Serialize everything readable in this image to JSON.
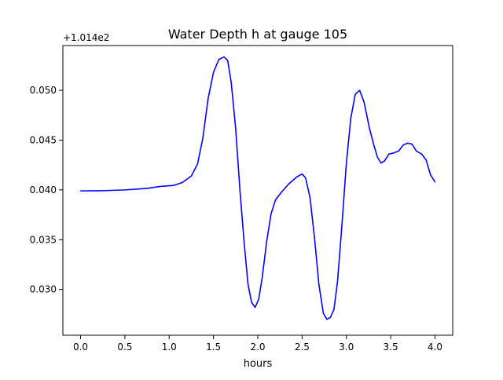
{
  "chart_data": {
    "type": "line",
    "title": "Water Depth h at gauge 105",
    "xlabel": "hours",
    "ylabel": "",
    "offset_label": "+1.014e2",
    "y_offset": 101.4,
    "xlim": [
      -0.2,
      4.2
    ],
    "ylim": [
      0.0254,
      0.0545
    ],
    "xticks": [
      0.0,
      0.5,
      1.0,
      1.5,
      2.0,
      2.5,
      3.0,
      3.5,
      4.0
    ],
    "xtick_labels": [
      "0.0",
      "0.5",
      "1.0",
      "1.5",
      "2.0",
      "2.5",
      "3.0",
      "3.5",
      "4.0"
    ],
    "yticks": [
      0.03,
      0.035,
      0.04,
      0.045,
      0.05
    ],
    "ytick_labels": [
      "0.030",
      "0.035",
      "0.040",
      "0.045",
      "0.050"
    ],
    "grid": false,
    "series": [
      {
        "color": "#0000ff",
        "points": [
          [
            0.0,
            0.0399
          ],
          [
            0.25,
            0.03992
          ],
          [
            0.5,
            0.04
          ],
          [
            0.75,
            0.04015
          ],
          [
            0.9,
            0.04035
          ],
          [
            1.05,
            0.04045
          ],
          [
            1.15,
            0.04075
          ],
          [
            1.25,
            0.0414
          ],
          [
            1.32,
            0.0426
          ],
          [
            1.38,
            0.0452
          ],
          [
            1.44,
            0.0492
          ],
          [
            1.5,
            0.0518
          ],
          [
            1.56,
            0.0531
          ],
          [
            1.62,
            0.05336
          ],
          [
            1.66,
            0.053
          ],
          [
            1.7,
            0.0508
          ],
          [
            1.75,
            0.0462
          ],
          [
            1.8,
            0.0398
          ],
          [
            1.85,
            0.0343
          ],
          [
            1.89,
            0.0305
          ],
          [
            1.93,
            0.0287
          ],
          [
            1.97,
            0.0282
          ],
          [
            2.01,
            0.029
          ],
          [
            2.05,
            0.0312
          ],
          [
            2.1,
            0.0348
          ],
          [
            2.15,
            0.0376
          ],
          [
            2.2,
            0.039
          ],
          [
            2.27,
            0.0398
          ],
          [
            2.35,
            0.0406
          ],
          [
            2.44,
            0.0413
          ],
          [
            2.5,
            0.0416
          ],
          [
            2.54,
            0.0412
          ],
          [
            2.59,
            0.0392
          ],
          [
            2.64,
            0.0352
          ],
          [
            2.69,
            0.0305
          ],
          [
            2.74,
            0.0276
          ],
          [
            2.78,
            0.027
          ],
          [
            2.82,
            0.0272
          ],
          [
            2.86,
            0.028
          ],
          [
            2.9,
            0.0308
          ],
          [
            2.95,
            0.0365
          ],
          [
            3.0,
            0.0427
          ],
          [
            3.05,
            0.0472
          ],
          [
            3.1,
            0.0496
          ],
          [
            3.15,
            0.05
          ],
          [
            3.2,
            0.0488
          ],
          [
            3.26,
            0.0462
          ],
          [
            3.31,
            0.0445
          ],
          [
            3.35,
            0.0433
          ],
          [
            3.39,
            0.0427
          ],
          [
            3.43,
            0.0429
          ],
          [
            3.48,
            0.0436
          ],
          [
            3.53,
            0.0437
          ],
          [
            3.59,
            0.0439
          ],
          [
            3.64,
            0.0445
          ],
          [
            3.69,
            0.0447
          ],
          [
            3.74,
            0.0446
          ],
          [
            3.79,
            0.0439
          ],
          [
            3.85,
            0.0436
          ],
          [
            3.9,
            0.043
          ],
          [
            3.95,
            0.0415
          ],
          [
            4.0,
            0.0408
          ]
        ]
      }
    ]
  }
}
